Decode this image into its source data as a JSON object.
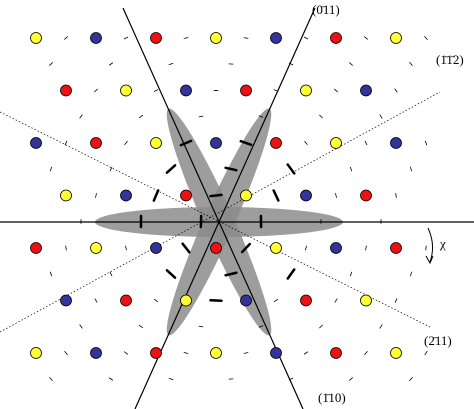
{
  "labels": {
    "top": "(0̄11)",
    "upper_right": "(1̄1̄2)",
    "lower_right": "(2̄11)",
    "bottom": "(1̄10)",
    "angle": "χ"
  }
}
